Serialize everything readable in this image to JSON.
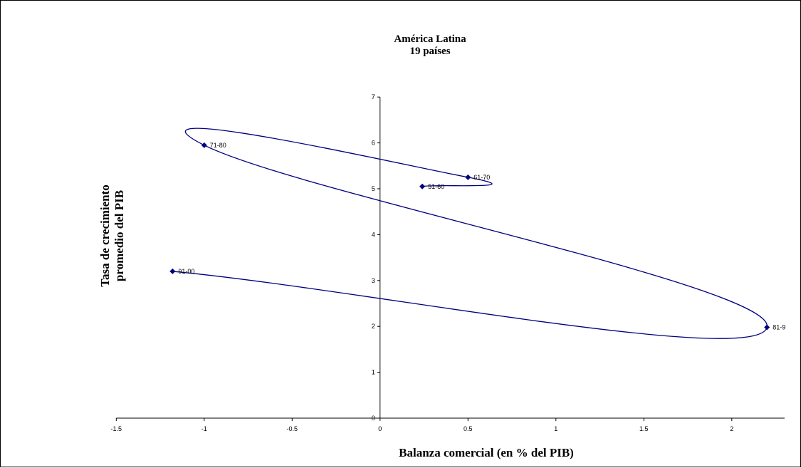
{
  "chart_data": {
    "type": "scatter",
    "title": "América Latina",
    "subtitle": "19 países",
    "xlabel": "Balanza comercial (en % del PIB)",
    "ylabel_line1": "Tasa de crecimiento",
    "ylabel_line2": "promedio del PIB",
    "xlim": [
      -1.5,
      2.3
    ],
    "ylim": [
      0,
      7
    ],
    "x_ticks": [
      -1.5,
      -1,
      -0.5,
      0,
      0.5,
      1,
      1.5,
      2
    ],
    "x_tick_labels": [
      "-1.5",
      "-1",
      "-0.5",
      "0",
      "0.5",
      "1",
      "1.5",
      "2"
    ],
    "y_ticks": [
      0,
      1,
      2,
      3,
      4,
      5,
      6,
      7
    ],
    "y_tick_labels": [
      "0",
      "1",
      "2",
      "3",
      "4",
      "5",
      "6",
      "7"
    ],
    "grid": false,
    "legend": "none",
    "series_color": "#000080",
    "points": [
      {
        "label": "51-60",
        "x": 0.24,
        "y": 5.05
      },
      {
        "label": "61-70",
        "x": 0.5,
        "y": 5.25
      },
      {
        "label": "71-80",
        "x": -1.0,
        "y": 5.95
      },
      {
        "label": "81-9",
        "x": 2.2,
        "y": 1.98
      },
      {
        "label": "91-00",
        "x": -1.18,
        "y": 3.2
      }
    ]
  }
}
